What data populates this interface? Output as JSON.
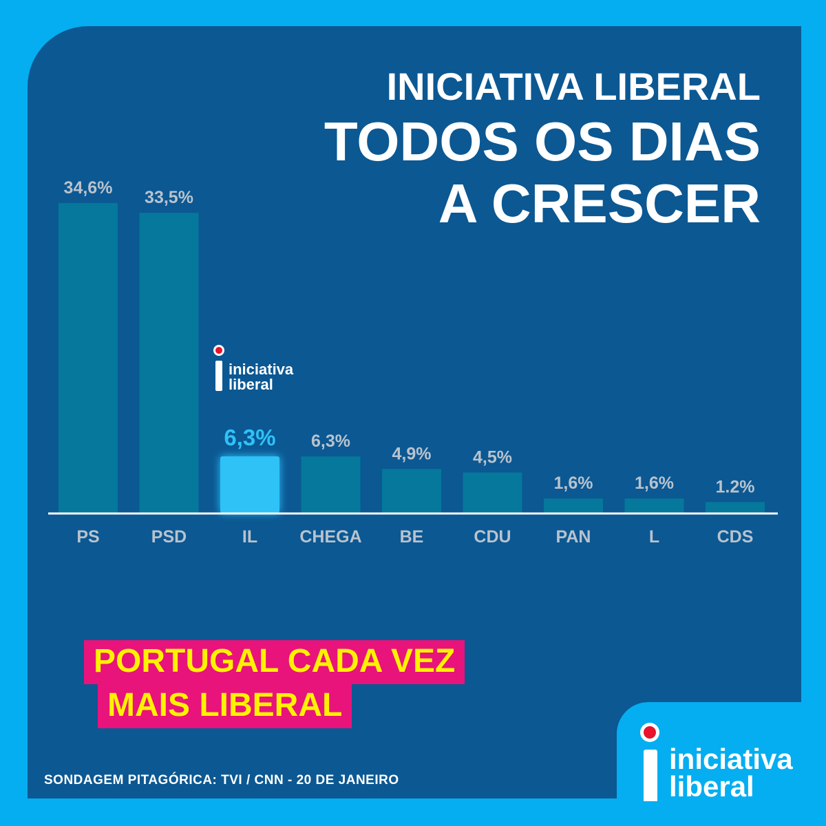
{
  "title": {
    "line1": "INICIATIVA LIBERAL",
    "line2": "TODOS OS DIAS",
    "line3": "A CRESCER"
  },
  "chart_data": {
    "type": "bar",
    "categories": [
      "PS",
      "PSD",
      "IL",
      "CHEGA",
      "BE",
      "CDU",
      "PAN",
      "L",
      "CDS"
    ],
    "values": [
      34.6,
      33.5,
      6.3,
      6.3,
      4.9,
      4.5,
      1.6,
      1.6,
      1.2
    ],
    "value_labels": [
      "34,6%",
      "33,5%",
      "6,3%",
      "6,3%",
      "4,9%",
      "4,5%",
      "1,6%",
      "1,6%",
      "1.2%"
    ],
    "highlight": "IL",
    "colors": {
      "bar": "#05789b",
      "highlight": "#2fc2f7",
      "axis": "#ffffff"
    }
  },
  "logo": {
    "word1": "iniciativa",
    "word2": "liberal"
  },
  "slogan": {
    "line1": "PORTUGAL CADA VEZ",
    "line2": "MAIS LIBERAL"
  },
  "source": "SONDAGEM  PITAGÓRICA: TVI / CNN - 20 DE JANEIRO"
}
